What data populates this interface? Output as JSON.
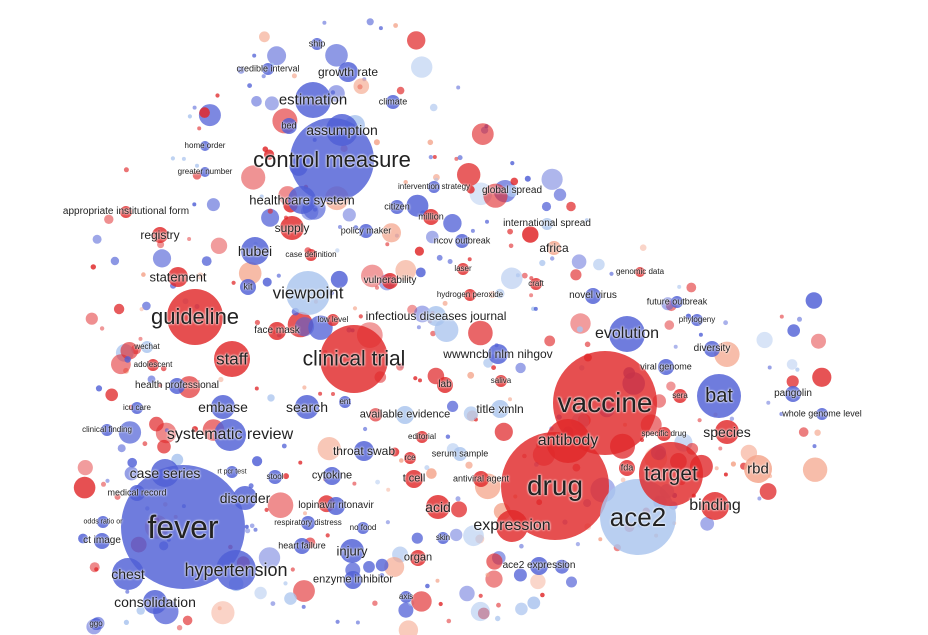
{
  "colors": {
    "blue": "#4f5fd6",
    "light_blue": "#aac4ee",
    "red": "#e0282a",
    "light_red": "#f4a48a",
    "label": "#222222"
  },
  "terms": [
    {
      "id": "ship",
      "label": "ship"
    },
    {
      "id": "credible-interval",
      "label": "credible interval"
    },
    {
      "id": "growth-rate",
      "label": "growth rate"
    },
    {
      "id": "estimation",
      "label": "estimation"
    },
    {
      "id": "climate",
      "label": "climate"
    },
    {
      "id": "bed",
      "label": "bed"
    },
    {
      "id": "assumption",
      "label": "assumption"
    },
    {
      "id": "home-order",
      "label": "home order"
    },
    {
      "id": "control-measure",
      "label": "control measure"
    },
    {
      "id": "greater-number",
      "label": "greater number"
    },
    {
      "id": "intervention-strategy",
      "label": "intervention strategy"
    },
    {
      "id": "global-spread",
      "label": "global spread"
    },
    {
      "id": "healthcare-system",
      "label": "healthcare system"
    },
    {
      "id": "citizen",
      "label": "citizen"
    },
    {
      "id": "appropriate-institutional-form",
      "label": "appropriate institutional form"
    },
    {
      "id": "million",
      "label": "million"
    },
    {
      "id": "international-spread",
      "label": "international spread"
    },
    {
      "id": "supply",
      "label": "supply"
    },
    {
      "id": "policy-maker",
      "label": "policy maker"
    },
    {
      "id": "registry",
      "label": "registry"
    },
    {
      "id": "ncov-outbreak",
      "label": "ncov outbreak"
    },
    {
      "id": "africa",
      "label": "africa"
    },
    {
      "id": "hubei",
      "label": "hubei"
    },
    {
      "id": "case-definition",
      "label": "case definition"
    },
    {
      "id": "laser",
      "label": "laser"
    },
    {
      "id": "genomic-data",
      "label": "genomic data"
    },
    {
      "id": "statement",
      "label": "statement"
    },
    {
      "id": "vulnerability",
      "label": "vulnerability"
    },
    {
      "id": "kit",
      "label": "kit"
    },
    {
      "id": "craft",
      "label": "craft"
    },
    {
      "id": "viewpoint",
      "label": "viewpoint"
    },
    {
      "id": "hydrogen-peroxide",
      "label": "hydrogen peroxide"
    },
    {
      "id": "novel-virus",
      "label": "novel virus"
    },
    {
      "id": "future-outbreak",
      "label": "future outbreak"
    },
    {
      "id": "guideline",
      "label": "guideline"
    },
    {
      "id": "low-level",
      "label": "low level"
    },
    {
      "id": "infectious-diseases-journal",
      "label": "infectious diseases journal"
    },
    {
      "id": "phylogeny",
      "label": "phylogeny"
    },
    {
      "id": "face-mask",
      "label": "face mask"
    },
    {
      "id": "evolution",
      "label": "evolution"
    },
    {
      "id": "wechat",
      "label": "wechat"
    },
    {
      "id": "wwwncbi-nlm-nihgov",
      "label": "wwwncbi nlm nihgov"
    },
    {
      "id": "diversity",
      "label": "diversity"
    },
    {
      "id": "staff",
      "label": "staff"
    },
    {
      "id": "clinical-trial",
      "label": "clinical trial"
    },
    {
      "id": "adolescent",
      "label": "adolescent"
    },
    {
      "id": "viral-genome",
      "label": "viral genome"
    },
    {
      "id": "lab",
      "label": "lab"
    },
    {
      "id": "saliva",
      "label": "saliva"
    },
    {
      "id": "health-professional",
      "label": "health professional"
    },
    {
      "id": "vaccine",
      "label": "vaccine"
    },
    {
      "id": "bat",
      "label": "bat"
    },
    {
      "id": "pangolin",
      "label": "pangolin"
    },
    {
      "id": "sera",
      "label": "sera"
    },
    {
      "id": "embase",
      "label": "embase"
    },
    {
      "id": "search",
      "label": "search"
    },
    {
      "id": "ent",
      "label": "ent"
    },
    {
      "id": "icu-care",
      "label": "icu care"
    },
    {
      "id": "available-evidence",
      "label": "available evidence"
    },
    {
      "id": "title-xmln",
      "label": "title xmln"
    },
    {
      "id": "whole-genome-level",
      "label": "whole genome level"
    },
    {
      "id": "clinical-finding",
      "label": "clinical finding"
    },
    {
      "id": "systematic-review",
      "label": "systematic review"
    },
    {
      "id": "specific-drug",
      "label": "specific drug"
    },
    {
      "id": "species",
      "label": "species"
    },
    {
      "id": "editorial",
      "label": "editorial"
    },
    {
      "id": "antibody",
      "label": "antibody"
    },
    {
      "id": "throat-swab",
      "label": "throat swab"
    },
    {
      "id": "serum-sample",
      "label": "serum sample"
    },
    {
      "id": "rce",
      "label": "rce"
    },
    {
      "id": "rbd",
      "label": "rbd"
    },
    {
      "id": "case-series",
      "label": "case series"
    },
    {
      "id": "rt-pcr-test",
      "label": "rt pcr test"
    },
    {
      "id": "stool",
      "label": "stool"
    },
    {
      "id": "cytokine",
      "label": "cytokine"
    },
    {
      "id": "fda",
      "label": "fda"
    },
    {
      "id": "target",
      "label": "target"
    },
    {
      "id": "t-cell",
      "label": "t cell"
    },
    {
      "id": "antiviral-agent",
      "label": "antiviral agent"
    },
    {
      "id": "medical-record",
      "label": "medical record"
    },
    {
      "id": "drug",
      "label": "drug"
    },
    {
      "id": "disorder",
      "label": "disorder"
    },
    {
      "id": "lopinavir-ritonavir",
      "label": "lopinavir ritonavir"
    },
    {
      "id": "acid",
      "label": "acid"
    },
    {
      "id": "binding",
      "label": "binding"
    },
    {
      "id": "fever",
      "label": "fever"
    },
    {
      "id": "odds-ratio-or",
      "label": "odds ratio or"
    },
    {
      "id": "respiratory-distress",
      "label": "respiratory distress"
    },
    {
      "id": "ace2",
      "label": "ace2"
    },
    {
      "id": "ct-image",
      "label": "ct image"
    },
    {
      "id": "no-food",
      "label": "no food"
    },
    {
      "id": "expression",
      "label": "expression"
    },
    {
      "id": "skin",
      "label": "skin"
    },
    {
      "id": "heart-failure",
      "label": "heart failure"
    },
    {
      "id": "injury",
      "label": "injury"
    },
    {
      "id": "organ",
      "label": "organ"
    },
    {
      "id": "ace2-expression",
      "label": "ace2 expression"
    },
    {
      "id": "hypertension",
      "label": "hypertension"
    },
    {
      "id": "chest",
      "label": "chest"
    },
    {
      "id": "enzyme-inhibitor",
      "label": "enzyme inhibitor"
    },
    {
      "id": "axis",
      "label": "axis"
    },
    {
      "id": "consolidation",
      "label": "consolidation"
    },
    {
      "id": "ggo",
      "label": "ggo"
    }
  ]
}
